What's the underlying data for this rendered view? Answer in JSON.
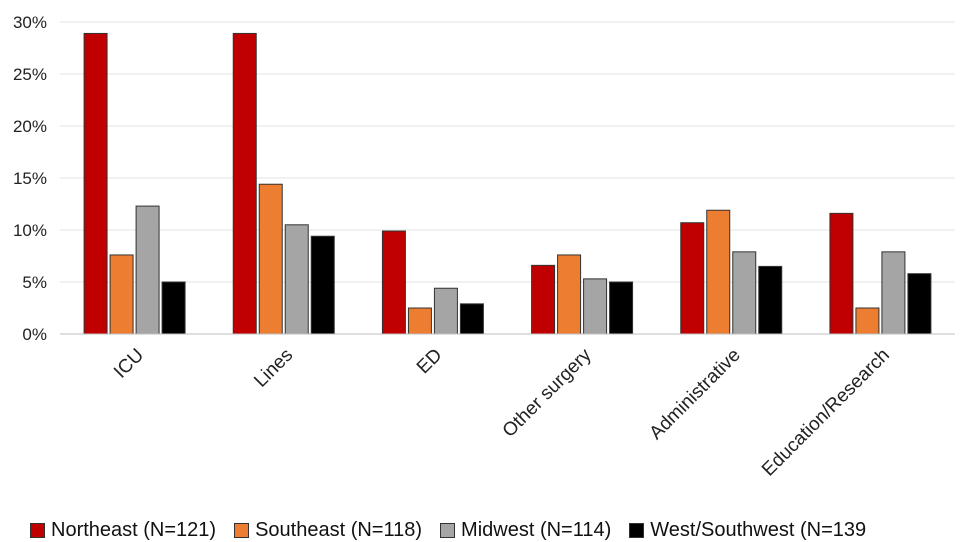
{
  "chart_data": {
    "type": "bar",
    "title": "",
    "xlabel": "",
    "ylabel": "",
    "ylim": [
      0,
      30
    ],
    "yticks": [
      "0%",
      "5%",
      "10%",
      "15%",
      "20%",
      "25%",
      "30%"
    ],
    "grid": true,
    "legend_position": "bottom",
    "categories": [
      "ICU",
      "Lines",
      "ED",
      "Other surgery",
      "Administrative",
      "Education/Research"
    ],
    "series": [
      {
        "name": "Northeast (N=121)",
        "color": "#c00000",
        "values": [
          28.9,
          28.9,
          9.9,
          6.6,
          10.7,
          11.6
        ]
      },
      {
        "name": "Southeast (N=118)",
        "color": "#ed7d31",
        "values": [
          7.6,
          14.4,
          2.5,
          7.6,
          11.9,
          2.5
        ]
      },
      {
        "name": "Midwest (N=114)",
        "color": "#a5a5a5",
        "values": [
          12.3,
          10.5,
          4.4,
          5.3,
          7.9,
          7.9
        ]
      },
      {
        "name": "West/Southwest (N=139",
        "color": "#000000",
        "values": [
          5.0,
          9.4,
          2.9,
          5.0,
          6.5,
          5.8
        ]
      }
    ]
  }
}
